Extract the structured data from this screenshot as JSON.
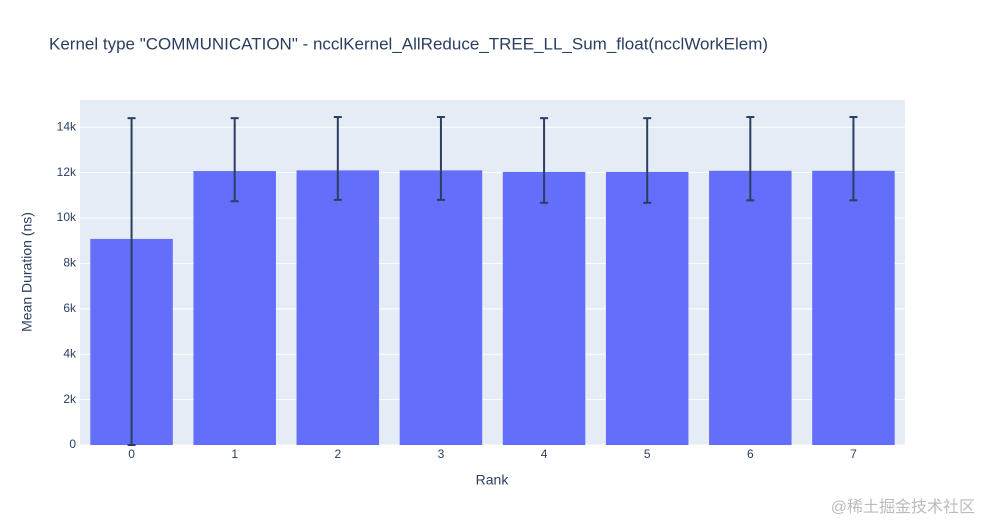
{
  "chart_data": {
    "type": "bar",
    "title": "Kernel type \"COMMUNICATION\" - ncclKernel_AllReduce_TREE_LL_Sum_float(ncclWorkElem)",
    "x_label": "Rank",
    "y_label": "Mean Duration (ns)",
    "categories": [
      "0",
      "1",
      "2",
      "3",
      "4",
      "5",
      "6",
      "7"
    ],
    "values": [
      9080,
      12070,
      12100,
      12100,
      12030,
      12030,
      12080,
      12080
    ],
    "error_plus": [
      5320,
      2330,
      2350,
      2350,
      2370,
      2370,
      2370,
      2370
    ],
    "error_minus": [
      9080,
      1330,
      1300,
      1300,
      1360,
      1360,
      1300,
      1300
    ],
    "color": "#636efa",
    "error_color": "#2a3f5f",
    "ylim": [
      0,
      15200
    ],
    "yticks": [
      0,
      {
        "value": 2000,
        "label": "2k"
      },
      {
        "value": 4000,
        "label": "4k"
      },
      {
        "value": 6000,
        "label": "6k"
      },
      {
        "value": 8000,
        "label": "8k"
      },
      {
        "value": 10000,
        "label": "10k"
      },
      {
        "value": 12000,
        "label": "12k"
      },
      {
        "value": 14000,
        "label": "14k"
      }
    ],
    "grid": true,
    "watermark": "@稀土掘金技术社区"
  }
}
